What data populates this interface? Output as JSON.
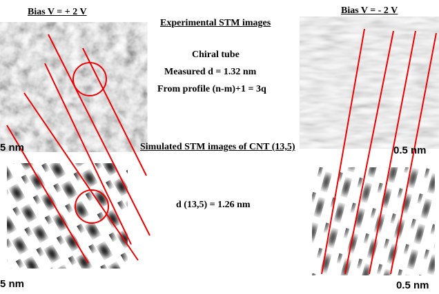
{
  "labels": {
    "bias_left": "Bias V = + 2 V",
    "experimental": "Experimental STM images",
    "bias_right": "Bias V = - 2 V",
    "chiral": "Chiral tube",
    "measured": "Measured d = 1.32 nm",
    "profile": "From profile (n-m)+1 = 3q",
    "scale_top_left": "5 nm",
    "simulated": "Simulated STM images of CNT (13,5)",
    "scale_top_right": "0.5 nm",
    "d_sim": "d (13,5) = 1.26 nm",
    "scale_bottom_left": "5 nm",
    "scale_bottom_right": "0.5 nm"
  }
}
